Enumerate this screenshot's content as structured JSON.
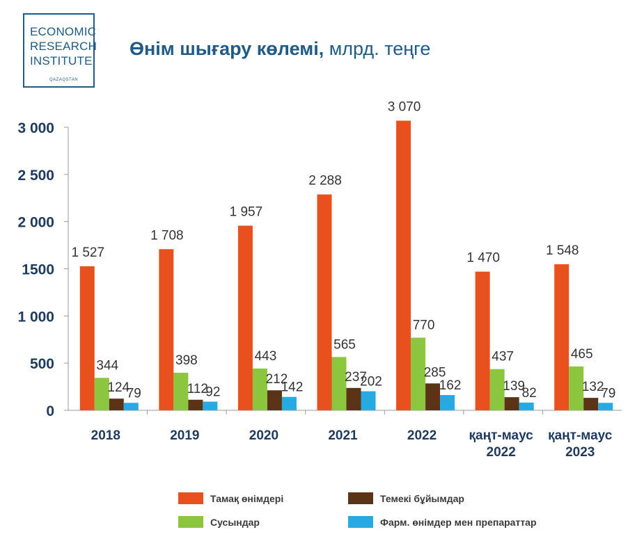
{
  "logo": {
    "line1": "ECONOMIC",
    "line2": "RESEARCH",
    "line3": "INSTITUTE",
    "sub": "QAZAQSTAN"
  },
  "header": {
    "title_main": "Өнім шығару көлемі,",
    "title_unit": "млрд. теңге"
  },
  "chart_data": {
    "type": "bar",
    "categories": [
      [
        "2018"
      ],
      [
        "2019"
      ],
      [
        "2020"
      ],
      [
        "2021"
      ],
      [
        "2022"
      ],
      [
        "қаңт-маус",
        "2022"
      ],
      [
        "қаңт-маус",
        "2023"
      ]
    ],
    "series": [
      {
        "name": "Тамақ өнімдері",
        "color": "#e8501e",
        "values": [
          1527,
          1708,
          1957,
          2288,
          3070,
          1470,
          1548
        ]
      },
      {
        "name": "Сусындар",
        "color": "#8cc63f",
        "values": [
          344,
          398,
          443,
          565,
          770,
          437,
          465
        ]
      },
      {
        "name": "Темекі бұйымдар",
        "color": "#5b3417",
        "values": [
          124,
          112,
          212,
          237,
          285,
          139,
          132
        ]
      },
      {
        "name": "Фарм. өнімдер мен препараттар",
        "color": "#27aae1",
        "values": [
          79,
          92,
          142,
          202,
          162,
          82,
          79
        ]
      }
    ],
    "value_labels": [
      [
        "1 527",
        "1 708",
        "1 957",
        "2 288",
        "3 070",
        "1 470",
        "1 548"
      ],
      [
        "344",
        "398",
        "443",
        "565",
        "770",
        "437",
        "465"
      ],
      [
        "124",
        "112",
        "212",
        "237",
        "285",
        "139",
        "132"
      ],
      [
        "79",
        "92",
        "142",
        "202",
        "162",
        "82",
        "79"
      ]
    ],
    "y_ticks": [
      0,
      500,
      1000,
      1500,
      2000,
      2500,
      3000
    ],
    "y_tick_labels": [
      "0",
      "500",
      "1 000",
      "1500",
      "2 000",
      "2 500",
      "3 000"
    ],
    "ylim": [
      0,
      3000
    ],
    "grid": false,
    "legend_position": "bottom"
  }
}
